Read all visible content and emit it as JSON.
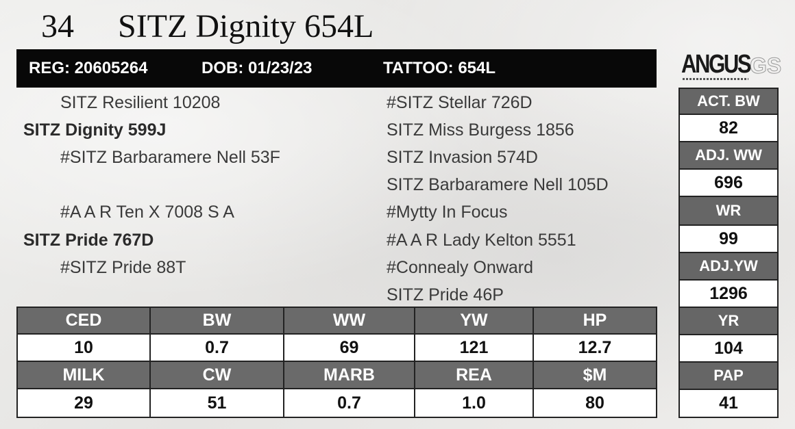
{
  "title": {
    "lot": "34",
    "name": "SITZ Dignity 654L"
  },
  "infobar": {
    "reg": "REG: 20605264",
    "dob": "DOB: 01/23/23",
    "tattoo": "TATTOO: 654L"
  },
  "logo": {
    "brand": "ANGUS",
    "suffix": "GS"
  },
  "pedigree": {
    "left": [
      "SITZ Resilient 10208",
      "SITZ Dignity 599J",
      "#SITZ Barbaramere Nell 53F",
      "#A A R Ten X 7008 S A",
      "SITZ Pride 767D",
      "#SITZ Pride 88T"
    ],
    "right": [
      "#SITZ Stellar 726D",
      "SITZ Miss Burgess 1856",
      "SITZ Invasion 574D",
      "SITZ Barbaramere Nell 105D",
      "#Mytty In Focus",
      "#A A R Lady Kelton 5551",
      "#Connealy Onward",
      "SITZ Pride 46P"
    ]
  },
  "side_stats": [
    {
      "label": "ACT. BW",
      "value": "82"
    },
    {
      "label": "ADJ. WW",
      "value": "696"
    },
    {
      "label": "WR",
      "value": "99"
    },
    {
      "label": "ADJ.YW",
      "value": "1296"
    },
    {
      "label": "YR",
      "value": "104"
    },
    {
      "label": "PAP",
      "value": "41"
    }
  ],
  "epd": {
    "row1_headers": [
      "CED",
      "BW",
      "WW",
      "YW",
      "HP"
    ],
    "row1_values": [
      "10",
      "0.7",
      "69",
      "121",
      "12.7"
    ],
    "row2_headers": [
      "MILK",
      "CW",
      "MARB",
      "REA",
      "$M"
    ],
    "row2_values": [
      "29",
      "51",
      "0.7",
      "1.0",
      "80"
    ]
  },
  "colors": {
    "bar": "#080808",
    "header_cell": "#6a6a6a",
    "value_cell": "#ffffff",
    "background": "#ecebe9"
  }
}
